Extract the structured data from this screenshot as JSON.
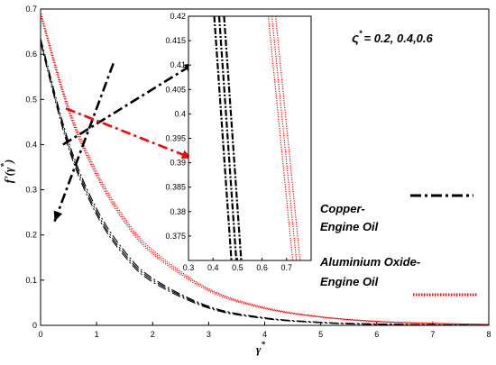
{
  "chart_data": {
    "type": "line",
    "xlabel_main": "γ",
    "xlabel_sup": "*",
    "ylabel_main": "f'(γ",
    "ylabel_sup": "*",
    "ylabel_close": ")",
    "xlim": [
      0,
      8
    ],
    "ylim": [
      0,
      0.7
    ],
    "xticks": [
      "0",
      "1",
      "2",
      "3",
      "4",
      "5",
      "6",
      "7",
      "8"
    ],
    "yticks": [
      "0",
      "0.1",
      "0.2",
      "0.3",
      "0.4",
      "0.5",
      "0.6",
      "0.7"
    ],
    "parameter_sym": "ς",
    "parameter_sup": "*",
    "parameter_values": "= 0.2, 0.4,0.6",
    "grid": false,
    "series": [
      {
        "name": "Copper-Engine Oil",
        "color": "#000000",
        "style": "dash-dot",
        "curves": [
          {
            "x": [
              0,
              0.5,
              1,
              1.5,
              2,
              3,
              4,
              5,
              6,
              8
            ],
            "y": [
              0.625,
              0.392,
              0.245,
              0.153,
              0.096,
              0.038,
              0.015,
              0.006,
              0.002,
              0.0
            ]
          },
          {
            "x": [
              0,
              0.5,
              1,
              1.5,
              2,
              3,
              4,
              5,
              6,
              8
            ],
            "y": [
              0.63,
              0.399,
              0.251,
              0.158,
              0.1,
              0.04,
              0.016,
              0.006,
              0.003,
              0.0
            ]
          },
          {
            "x": [
              0,
              0.5,
              1,
              1.5,
              2,
              3,
              4,
              5,
              6,
              8
            ],
            "y": [
              0.635,
              0.406,
              0.258,
              0.164,
              0.104,
              0.042,
              0.017,
              0.007,
              0.003,
              0.0
            ]
          }
        ]
      },
      {
        "name": "Aluminium Oxide-Engine Oil",
        "color": "#ff0000",
        "style": "dotted",
        "curves": [
          {
            "x": [
              0,
              0.5,
              1,
              1.5,
              2,
              3,
              4,
              5,
              6,
              7,
              8
            ],
            "y": [
              0.685,
              0.472,
              0.33,
              0.228,
              0.158,
              0.076,
              0.037,
              0.018,
              0.008,
              0.004,
              0.002
            ]
          },
          {
            "x": [
              0,
              0.5,
              1,
              1.5,
              2,
              3,
              4,
              5,
              6,
              7,
              8
            ],
            "y": [
              0.69,
              0.478,
              0.335,
              0.233,
              0.162,
              0.079,
              0.038,
              0.019,
              0.009,
              0.004,
              0.002
            ]
          },
          {
            "x": [
              0,
              0.5,
              1,
              1.5,
              2,
              3,
              4,
              5,
              6,
              7,
              8
            ],
            "y": [
              0.695,
              0.484,
              0.341,
              0.238,
              0.167,
              0.081,
              0.04,
              0.019,
              0.009,
              0.005,
              0.002
            ]
          }
        ]
      }
    ],
    "legend": [
      {
        "line1": "Copper-",
        "line2": "Engine Oil",
        "color": "#000000",
        "style": "dash-dot"
      },
      {
        "line1": "Aluminium Oxide-",
        "line2": "Engine Oil",
        "color": "#ff0000",
        "style": "dotted"
      }
    ],
    "inset": {
      "xlim": [
        0.3,
        0.8
      ],
      "ylim": [
        0.37,
        0.42
      ],
      "xticks": [
        "0.3",
        "0.4",
        "0.5",
        "0.6",
        "0.7"
      ],
      "yticks": [
        "0.375",
        "0.38",
        "0.385",
        "0.39",
        "0.395",
        "0.4",
        "0.405",
        "0.41",
        "0.415",
        "0.42"
      ],
      "series": [
        {
          "color": "#000000",
          "style": "dash-dot",
          "curves": [
            {
              "x": [
                0.405,
                0.475
              ],
              "y": [
                0.42,
                0.37
              ]
            },
            {
              "x": [
                0.425,
                0.495
              ],
              "y": [
                0.42,
                0.37
              ]
            },
            {
              "x": [
                0.445,
                0.515
              ],
              "y": [
                0.42,
                0.37
              ]
            }
          ]
        },
        {
          "color": "#ff0000",
          "style": "dotted",
          "curves": [
            {
              "x": [
                0.625,
                0.725
              ],
              "y": [
                0.42,
                0.37
              ]
            },
            {
              "x": [
                0.64,
                0.74
              ],
              "y": [
                0.42,
                0.37
              ]
            },
            {
              "x": [
                0.655,
                0.755
              ],
              "y": [
                0.42,
                0.37
              ]
            }
          ]
        }
      ]
    },
    "annotations": [
      {
        "from": [
          0.25,
          0.23
        ],
        "to": [
          1.3,
          0.58
        ],
        "color": "#000000",
        "heads": [
          "from"
        ]
      },
      {
        "from": [
          0.4,
          0.4
        ],
        "to": [
          2.75,
          0.58
        ],
        "color": "#000000",
        "heads": [
          "to"
        ]
      },
      {
        "from": [
          0.45,
          0.48
        ],
        "to": [
          2.7,
          0.37
        ],
        "color": "#ff0000",
        "heads": [
          "to"
        ]
      }
    ]
  }
}
